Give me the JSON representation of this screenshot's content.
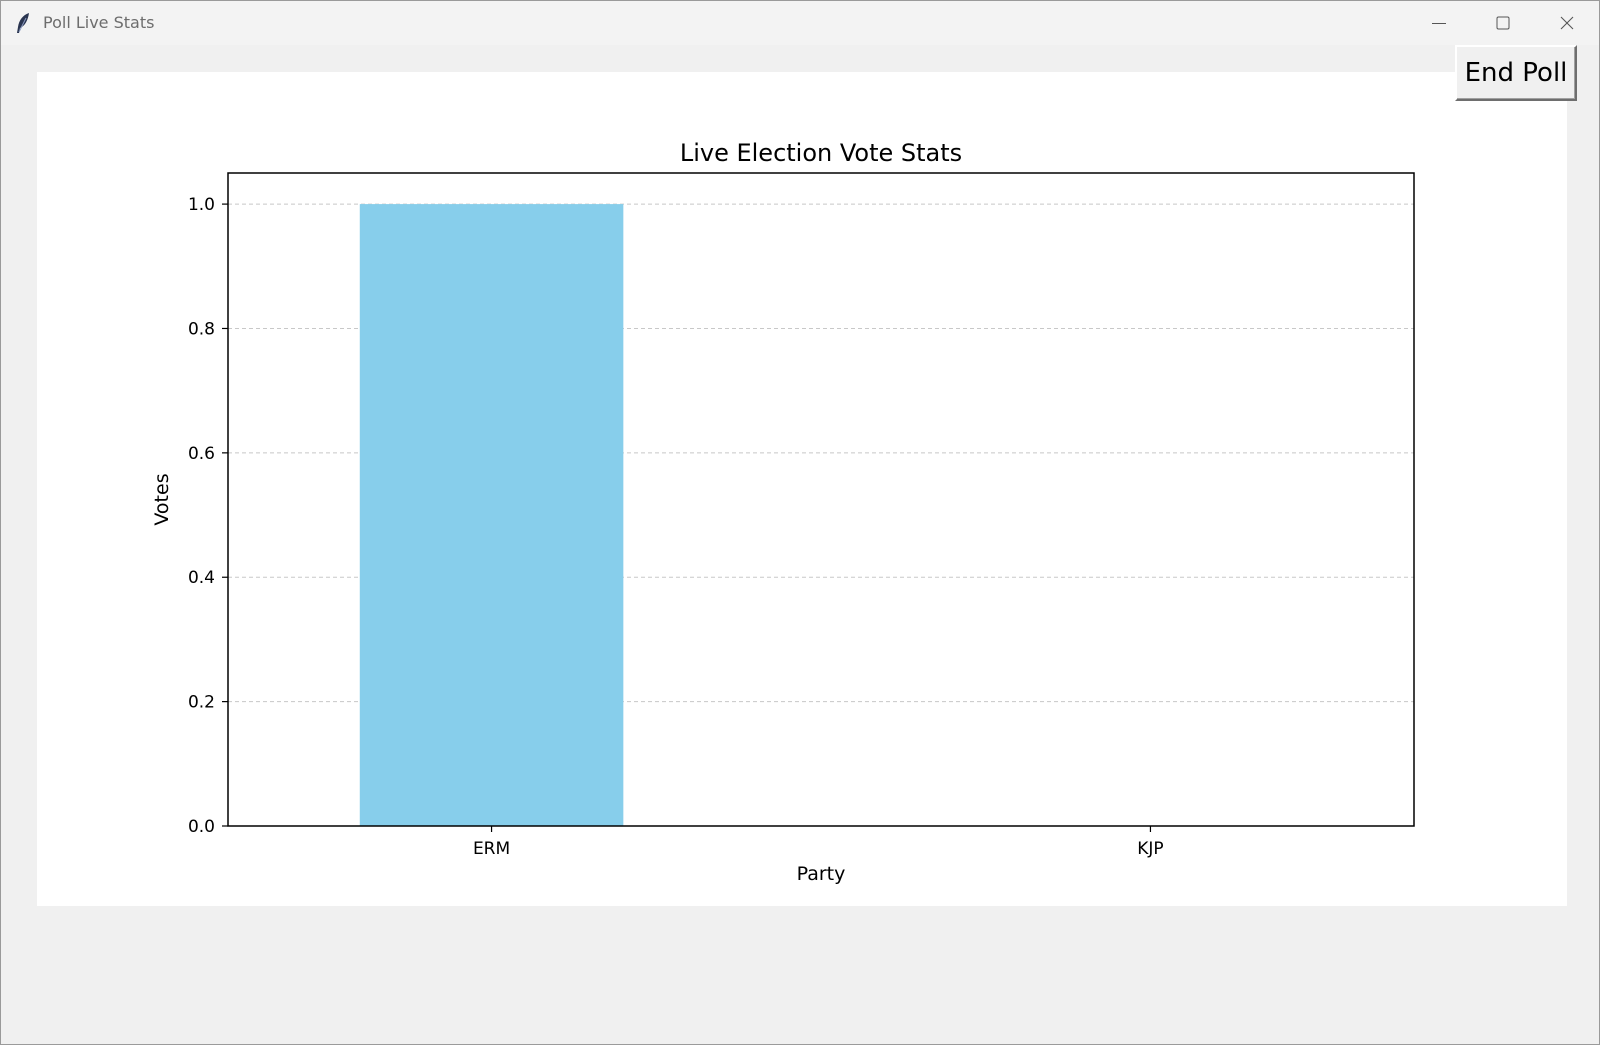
{
  "window": {
    "title": "Poll Live Stats",
    "icon": "feather-icon"
  },
  "toolbar": {
    "end_poll_label": "End Poll"
  },
  "chart_data": {
    "type": "bar",
    "title": "Live Election Vote Stats",
    "xlabel": "Party",
    "ylabel": "Votes",
    "categories": [
      "ERM",
      "KJP"
    ],
    "values": [
      1,
      0
    ],
    "ylim": [
      0,
      1.05
    ],
    "yticks": [
      0.0,
      0.2,
      0.4,
      0.6,
      0.8,
      1.0
    ],
    "ytick_labels": [
      "0.0",
      "0.2",
      "0.4",
      "0.6",
      "0.8",
      "1.0"
    ],
    "grid": "y, dashed",
    "bar_color": "#87CEEB"
  }
}
